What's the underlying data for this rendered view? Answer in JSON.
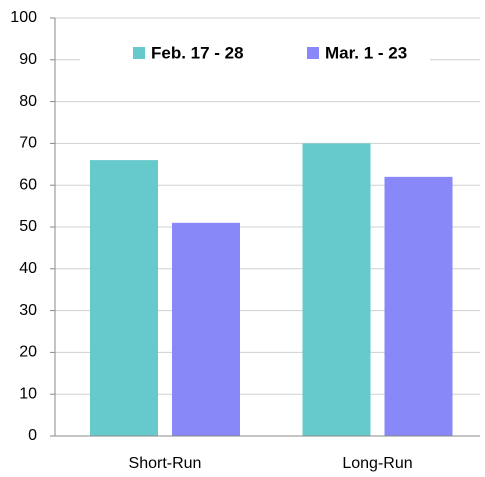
{
  "chart_data": {
    "type": "bar",
    "categories": [
      "Short-Run",
      "Long-Run"
    ],
    "series": [
      {
        "name": "Feb. 17 - 28",
        "color": "#66c9cc",
        "values": [
          66,
          70
        ]
      },
      {
        "name": "Mar. 1 - 23",
        "color": "#8888f8",
        "values": [
          51,
          62
        ]
      }
    ],
    "ylim": [
      0,
      100
    ],
    "yticks": [
      0,
      10,
      20,
      30,
      40,
      50,
      60,
      70,
      80,
      90,
      100
    ],
    "grid": true,
    "legend": "top"
  }
}
